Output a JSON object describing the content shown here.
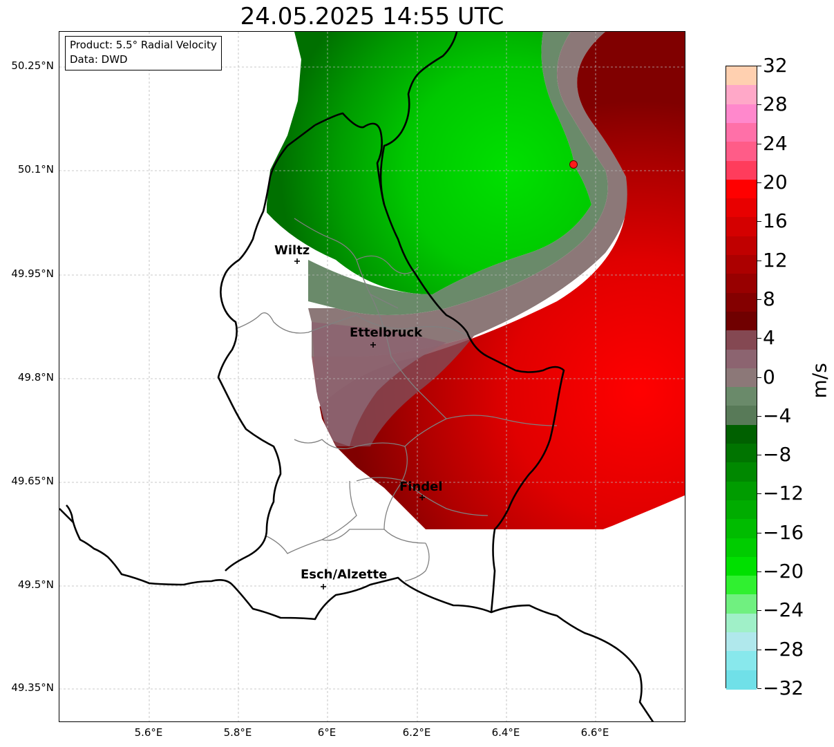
{
  "title": "24.05.2025 14:55 UTC",
  "infobox": {
    "product": "Product: 5.5° Radial Velocity",
    "data": "Data: DWD"
  },
  "axes": {
    "lat_ticks": [
      "50.25°N",
      "50.1°N",
      "49.95°N",
      "49.8°N",
      "49.65°N",
      "49.5°N",
      "49.35°N"
    ],
    "lat_values": [
      50.25,
      50.1,
      49.95,
      49.8,
      49.65,
      49.5,
      49.35
    ],
    "lon_ticks": [
      "5.6°E",
      "5.8°E",
      "6°E",
      "6.2°E",
      "6.4°E",
      "6.6°E"
    ],
    "lon_values": [
      5.6,
      5.8,
      6.0,
      6.2,
      6.4,
      6.6
    ],
    "grid": true
  },
  "cities": [
    {
      "name": "Wiltz",
      "lon": 5.93,
      "lat": 49.967
    },
    {
      "name": "Ettelbruck",
      "lon": 6.1,
      "lat": 49.848
    },
    {
      "name": "Findel",
      "lon": 6.21,
      "lat": 49.628
    },
    {
      "name": "Esch/Alzette",
      "lon": 5.99,
      "lat": 49.5
    }
  ],
  "marker": {
    "lon": 6.55,
    "lat": 50.108,
    "color": "#ff1a1a"
  },
  "colorbar": {
    "unit": "m/s",
    "min": -32,
    "max": 32,
    "tick_labels": [
      "32",
      "28",
      "24",
      "20",
      "16",
      "12",
      "8",
      "4",
      "0",
      "−4",
      "−8",
      "−12",
      "−16",
      "−20",
      "−24",
      "−28",
      "−32"
    ],
    "tick_values": [
      32,
      28,
      24,
      20,
      16,
      12,
      8,
      4,
      0,
      -4,
      -8,
      -12,
      -16,
      -20,
      -24,
      -28,
      -32
    ],
    "colors_top_to_bottom": [
      "#ffd0b0",
      "#ffa8c8",
      "#ff88cc",
      "#ff70a8",
      "#ff5c88",
      "#ff3c5c",
      "#ff0000",
      "#e80000",
      "#d40000",
      "#c00000",
      "#ac0000",
      "#980000",
      "#840000",
      "#700000",
      "#844852",
      "#8c6470",
      "#8c7878",
      "#6a8a6a",
      "#587a58",
      "#006000",
      "#007400",
      "#008800",
      "#009c00",
      "#00ac00",
      "#00bc00",
      "#00cc00",
      "#00e000",
      "#30f030",
      "#70f080",
      "#a0f0c8",
      "#b0e8ec",
      "#88e8ec",
      "#70e0e8"
    ]
  }
}
